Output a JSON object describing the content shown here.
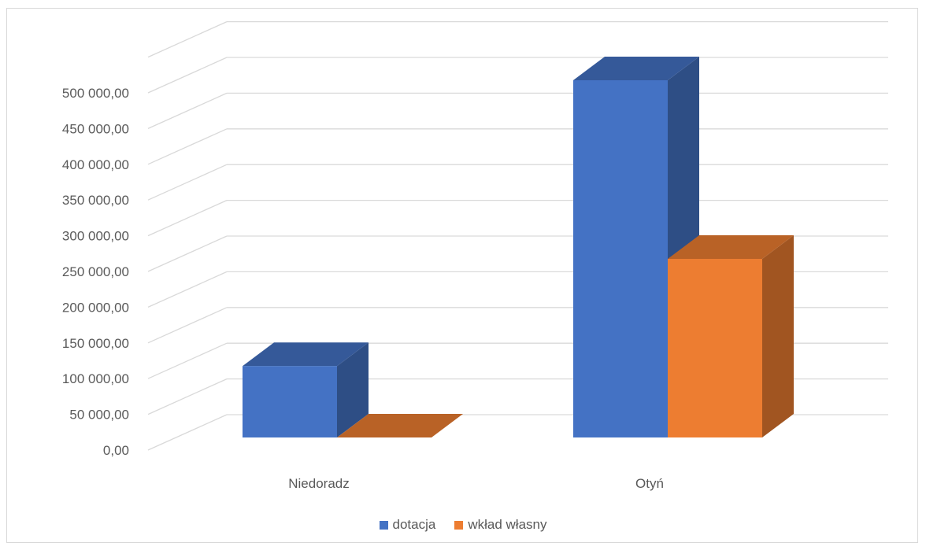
{
  "chart_data": {
    "type": "bar",
    "subtype": "3d-clustered-column",
    "categories": [
      "Niedoradz",
      "Otyń"
    ],
    "series": [
      {
        "name": "dotacja",
        "values": [
          100000,
          500000
        ],
        "color": "#4472C4"
      },
      {
        "name": "wkład własny",
        "values": [
          0,
          250000
        ],
        "color": "#ED7D31"
      }
    ],
    "ylim": [
      0,
      500000
    ],
    "y_ticks": [
      0,
      50000,
      100000,
      150000,
      200000,
      250000,
      300000,
      350000,
      400000,
      450000,
      500000
    ],
    "y_tick_labels": [
      "0,00",
      "50 000,00",
      "100 000,00",
      "150 000,00",
      "200 000,00",
      "250 000,00",
      "300 000,00",
      "350 000,00",
      "400 000,00",
      "450 000,00",
      "500 000,00"
    ],
    "grid": true,
    "legend_position": "bottom",
    "title": "",
    "xlabel": "",
    "ylabel": ""
  }
}
